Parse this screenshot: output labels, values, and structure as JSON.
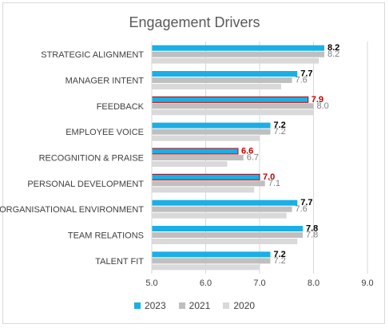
{
  "chart_data": {
    "type": "bar",
    "orientation": "horizontal",
    "title": "Engagement Drivers",
    "categories": [
      "STRATEGIC ALIGNMENT",
      "MANAGER INTENT",
      "FEEDBACK",
      "EMPLOYEE VOICE",
      "RECOGNITION & PRAISE",
      "PERSONAL DEVELOPMENT",
      "ORGANISATIONAL ENVIRONMENT",
      "TEAM RELATIONS",
      "TALENT FIT"
    ],
    "series": [
      {
        "name": "2023",
        "color": "#1aafe6",
        "values": [
          8.2,
          7.7,
          7.9,
          7.2,
          6.6,
          7.0,
          7.7,
          7.8,
          7.2
        ],
        "labels": [
          "8.2",
          "7.7",
          "7.9",
          "7.2",
          "6.6",
          "7.0",
          "7.7",
          "7.8",
          "7.2"
        ]
      },
      {
        "name": "2021",
        "color": "#bfbfbf",
        "values": [
          8.2,
          7.6,
          8.0,
          7.2,
          6.7,
          7.1,
          7.6,
          7.8,
          7.2
        ],
        "labels": [
          "8.2",
          "7.6",
          "8.0",
          "7.2",
          "6.7",
          "7.1",
          "7.6",
          "7.8",
          "7.2"
        ]
      },
      {
        "name": "2020",
        "color": "#d9d9d9",
        "values": [
          8.1,
          7.4,
          8.0,
          7.0,
          6.4,
          6.9,
          7.5,
          7.7,
          7.0
        ],
        "labels": []
      }
    ],
    "highlighted": [
      false,
      false,
      true,
      false,
      true,
      true,
      false,
      false,
      false
    ],
    "highlight_color": "#c00000",
    "xlim": [
      5.0,
      9.0
    ],
    "x_ticks": [
      "5.0",
      "6.0",
      "7.0",
      "8.0",
      "9.0"
    ],
    "xlabel": "",
    "ylabel": "",
    "grid": true,
    "legend_position": "bottom"
  }
}
